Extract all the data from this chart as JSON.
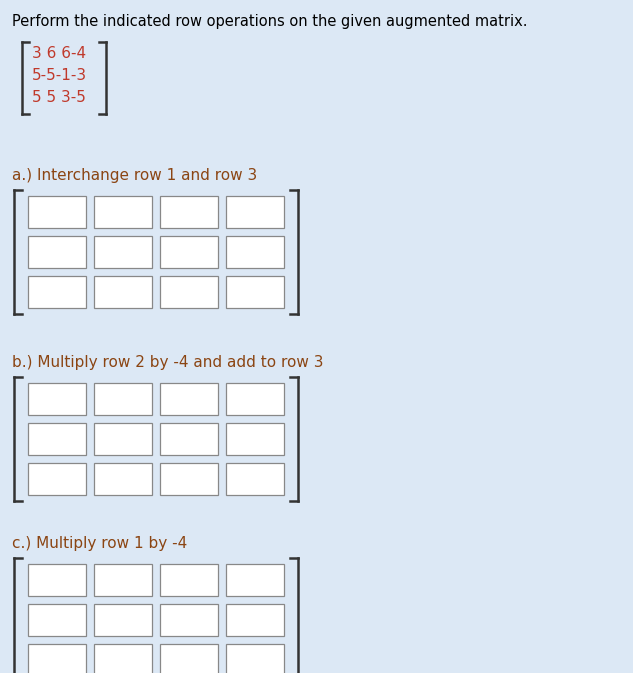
{
  "background_color": "#dce8f5",
  "title_text": "Perform the indicated row operations on the given augmented matrix.",
  "title_fontsize": 10.5,
  "title_color": "#000000",
  "matrix_lines": [
    "3 6 6-4",
    "5-5-1-3",
    "5 5 3-5"
  ],
  "matrix_fontsize": 11,
  "matrix_color": "#c0392b",
  "bracket_color": "#333333",
  "part_labels": [
    "a.) Interchange row 1 and row 3",
    "b.) Multiply row 2 by -4 and add to row 3",
    "c.) Multiply row 1 by -4"
  ],
  "part_label_color": "#8B4513",
  "part_label_fontsize": 11,
  "grid_rows": 3,
  "grid_cols": 4,
  "box_facecolor": "#ffffff",
  "box_edgecolor": "#888888",
  "bracket_linewidth": 1.8
}
